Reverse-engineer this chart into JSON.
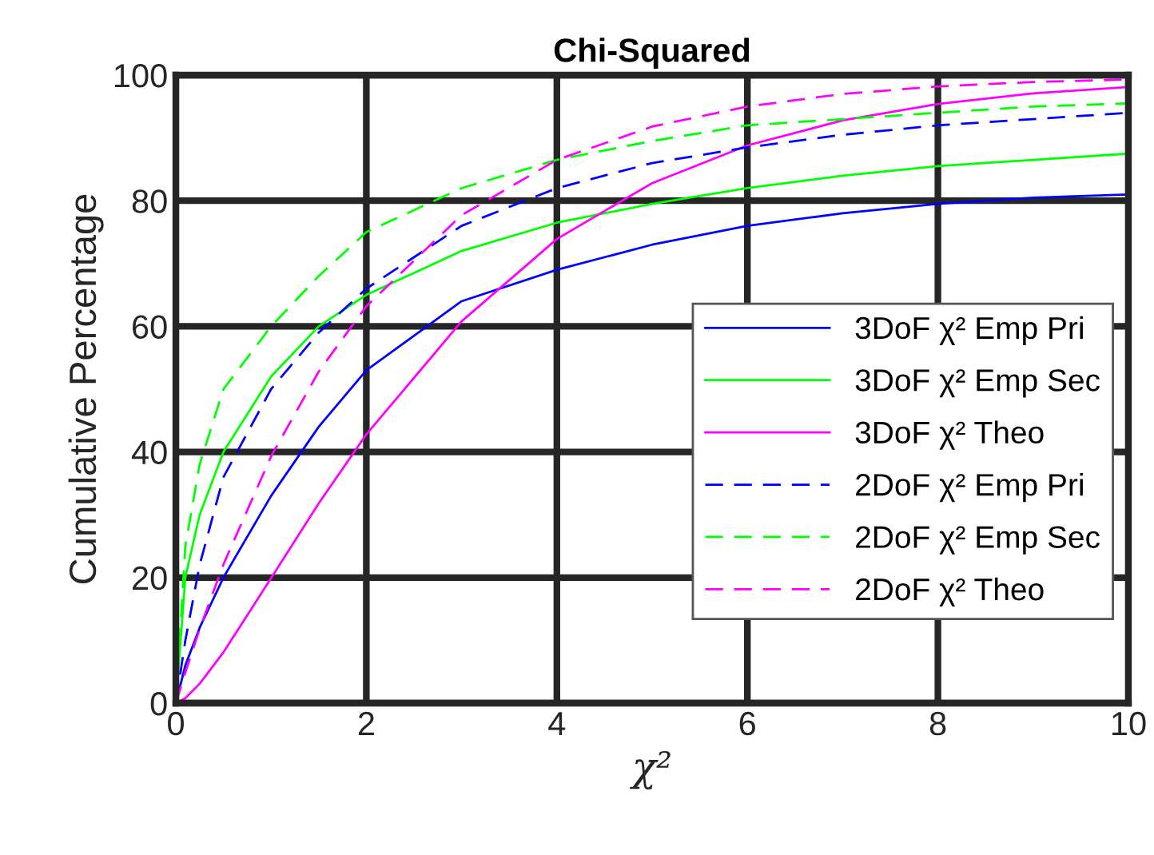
{
  "chart_data": {
    "type": "line",
    "title": "Chi-Squared",
    "xlabel": "χ²",
    "ylabel": "Cumulative Percentage",
    "x": [
      0,
      0.1,
      0.25,
      0.5,
      1,
      1.5,
      2,
      3,
      4,
      5,
      6,
      7,
      8,
      9,
      10
    ],
    "xlim": [
      0,
      10
    ],
    "xticks": [
      0,
      2,
      4,
      6,
      8,
      10
    ],
    "ylim": [
      0,
      100
    ],
    "yticks": [
      0,
      20,
      40,
      60,
      80,
      100
    ],
    "grid": true,
    "legend": "right",
    "marker": "none",
    "series": [
      {
        "name": "3DoF χ² Emp Pri",
        "color": "#0000ff",
        "line_style": "solid",
        "values": [
          0,
          6,
          12,
          20,
          33,
          44,
          53,
          64,
          69,
          73,
          76,
          78,
          79.5,
          80.5,
          81
        ]
      },
      {
        "name": "3DoF χ² Emp Sec",
        "color": "#00ff00",
        "line_style": "solid",
        "values": [
          0,
          20,
          30,
          40,
          52,
          60,
          65,
          72,
          76.5,
          79.5,
          82,
          84,
          85.5,
          86.5,
          87.5
        ]
      },
      {
        "name": "3DoF χ² Theo",
        "color": "#ff00ff",
        "line_style": "solid",
        "values": [
          0,
          0.8,
          3.1,
          8.1,
          19.9,
          31.8,
          42.8,
          60.8,
          73.9,
          82.8,
          88.8,
          92.8,
          95.4,
          97.1,
          98.1
        ]
      },
      {
        "name": "2DoF χ² Emp Pri",
        "color": "#0000ff",
        "line_style": "dashed",
        "values": [
          0,
          10,
          22,
          36,
          50,
          59,
          66,
          76,
          82,
          86,
          88.5,
          90.5,
          92,
          93,
          94
        ]
      },
      {
        "name": "2DoF χ² Emp Sec",
        "color": "#00ff00",
        "line_style": "dashed",
        "values": [
          0,
          25,
          38,
          50,
          60,
          68,
          75,
          82,
          86.5,
          89.5,
          92,
          93,
          94,
          95,
          95.5
        ]
      },
      {
        "name": "2DoF χ² Theo",
        "color": "#ff00ff",
        "line_style": "dashed",
        "values": [
          0,
          4.9,
          11.8,
          22.1,
          39.3,
          52.8,
          63.2,
          77.7,
          86.5,
          91.8,
          95.0,
          97.0,
          98.2,
          98.9,
          99.3
        ]
      }
    ]
  }
}
